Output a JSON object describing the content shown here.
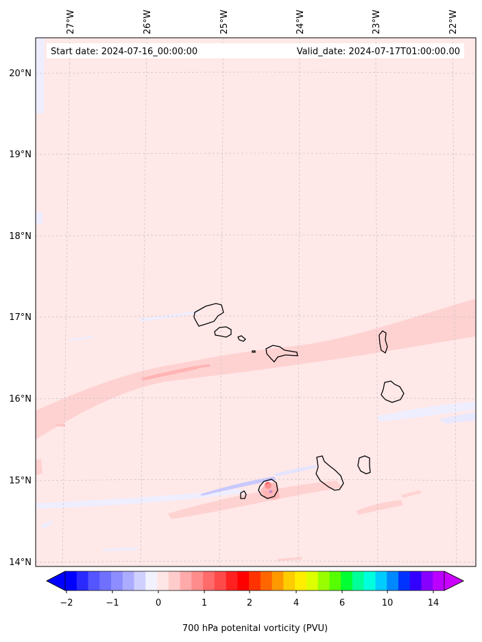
{
  "header": {
    "start_date": "Start date: 2024-07-16_00:00:00",
    "valid_date": "Valid_date: 2024-07-17T01:00:00.00"
  },
  "map": {
    "lon_labels": [
      "27°W",
      "26°W",
      "25°W",
      "24°W",
      "23°W",
      "22°W"
    ],
    "lat_labels": [
      "20°N",
      "19°N",
      "18°N",
      "17°N",
      "16°N",
      "15°N",
      "14°N"
    ],
    "background_color": "#ffe8e8",
    "band_color": "#ffd2d2",
    "negative_color": "#eeeeff"
  },
  "colorbar": {
    "label": "700 hPa potenital vorticity (PVU)",
    "tick_labels": [
      "−2",
      "−1",
      "0",
      "1",
      "2",
      "4",
      "6",
      "10",
      "14"
    ],
    "colors": [
      "#0000ff",
      "#2a2aff",
      "#5555ff",
      "#7070ff",
      "#8d8dff",
      "#acacff",
      "#d0d0ff",
      "#f2f2ff",
      "#ffe6e6",
      "#ffcccc",
      "#ffaaaa",
      "#ff8c8c",
      "#ff6a6a",
      "#ff4a4a",
      "#ff2020",
      "#ff0000",
      "#ff3300",
      "#ff6600",
      "#ff9900",
      "#ffcc00",
      "#ffee00",
      "#ddff00",
      "#99ff00",
      "#55ff00",
      "#00ff33",
      "#00ff99",
      "#00ffdd",
      "#00ccff",
      "#0088ff",
      "#0033ff",
      "#3300ff",
      "#8800ff",
      "#bb00ff"
    ],
    "under_color": "#0000ff",
    "over_color": "#cc00ff"
  }
}
